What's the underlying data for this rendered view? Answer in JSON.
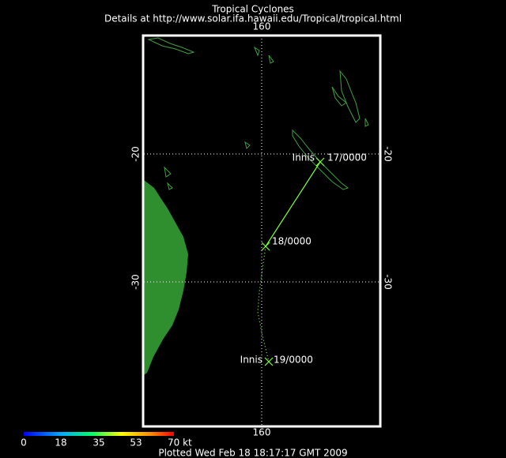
{
  "header": {
    "title": "Tropical Cyclones",
    "subtitle": "Details at http://www.solar.ifa.hawaii.edu/Tropical/tropical.html"
  },
  "axes": {
    "lon_top": "160",
    "lon_bottom": "160",
    "lat_lines": [
      {
        "left": "-20",
        "right": "-20"
      },
      {
        "left": "-30",
        "right": "-30"
      }
    ]
  },
  "track_labels": [
    {
      "name": "Innis",
      "time": "17/0000"
    },
    {
      "time": "18/0000"
    },
    {
      "name": "Innis",
      "time": "19/0000"
    }
  ],
  "legend": {
    "labels": [
      "0",
      "18",
      "35",
      "53",
      "70 kt"
    ]
  },
  "footer": "Plotted Wed Feb 18 18:17:17 GMT 2009"
}
